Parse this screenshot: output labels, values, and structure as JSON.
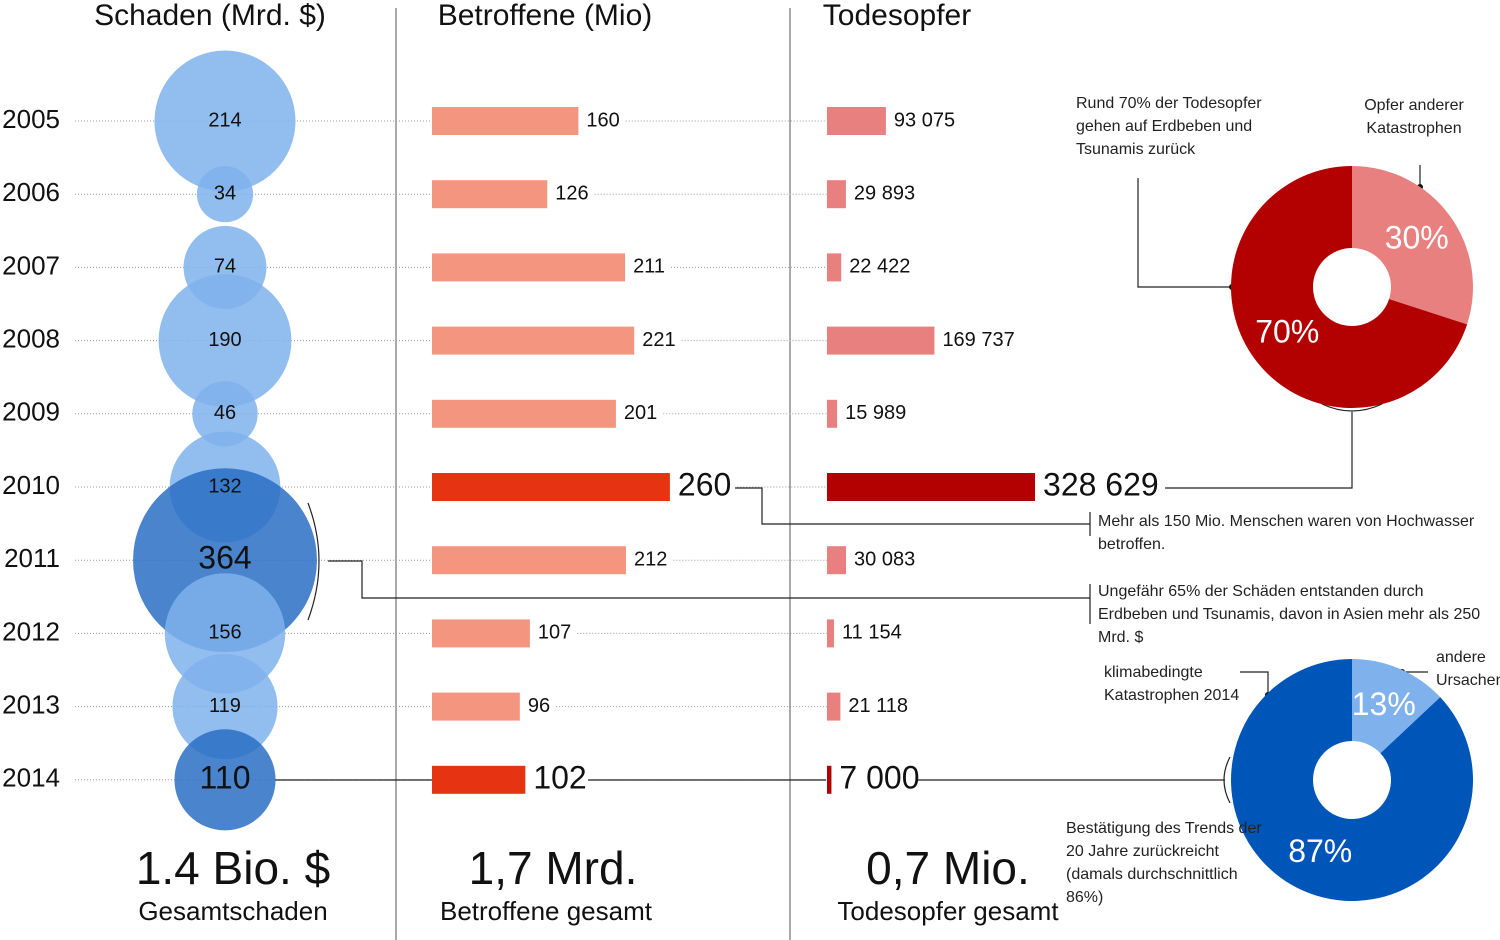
{
  "chart_data": [
    {
      "type": "bubble",
      "title": "Schaden (Mrd. $)",
      "categories": [
        "2005",
        "2006",
        "2007",
        "2008",
        "2009",
        "2010",
        "2011",
        "2012",
        "2013",
        "2014"
      ],
      "values": [
        214,
        34,
        74,
        190,
        46,
        132,
        364,
        156,
        119,
        110
      ],
      "colors": [
        "#7fb2ec",
        "#7fb2ec",
        "#7fb2ec",
        "#7fb2ec",
        "#7fb2ec",
        "#7fb2ec",
        "#2a6fc4",
        "#7fb2ec",
        "#7fb2ec",
        "#2a6fc4"
      ],
      "total": "1.4 Bio. $",
      "total_label": "Gesamtschaden",
      "total_color": "#1a5fb4",
      "annotation": "Ungefähr 65% der Schäden entstanden durch Erdbeben und Tsunamis, davon in Asien mehr als 250 Mrd. $"
    },
    {
      "type": "bar",
      "title": "Betroffene (Mio)",
      "values": [
        160,
        126,
        211,
        221,
        201,
        260,
        212,
        107,
        96,
        102
      ],
      "colors": [
        "#f4957f",
        "#f4957f",
        "#f4957f",
        "#f4957f",
        "#f4957f",
        "#e63312",
        "#f4957f",
        "#f4957f",
        "#f4957f",
        "#e63312"
      ],
      "total": "1,7 Mrd.",
      "total_label": "Betroffene gesamt",
      "total_color": "#e63312",
      "annotation": "Mehr als 150 Mio. Menschen waren von Hochwasser betroffen."
    },
    {
      "type": "bar",
      "title": "Todesopfer",
      "values": [
        93075,
        29893,
        22422,
        169737,
        15989,
        328629,
        30083,
        11154,
        21118,
        7000
      ],
      "value_labels": [
        "93 075",
        "29 893",
        "22 422",
        "169 737",
        "15 989",
        "328 629",
        "30 083",
        "11 154",
        "21 118",
        "7 000"
      ],
      "colors": [
        "#e88080",
        "#e88080",
        "#e88080",
        "#e88080",
        "#e88080",
        "#b30000",
        "#e88080",
        "#e88080",
        "#e88080",
        "#b30000"
      ],
      "total": "0,7 Mio.",
      "total_label": "Todesopfer gesamt",
      "total_color": "#b30000"
    },
    {
      "type": "pie",
      "categories": [
        "Opfer anderer Katastrophen",
        "Rund 70% der Todesopfer gehen auf Erdbeben und Tsunamis zurück"
      ],
      "values": [
        30,
        70
      ],
      "value_labels": [
        "30%",
        "70%"
      ],
      "colors": [
        "#e88080",
        "#b30000"
      ]
    },
    {
      "type": "pie",
      "categories": [
        "andere Ursachen",
        "klimabedingte Katastrophen 2014"
      ],
      "values": [
        13,
        87
      ],
      "value_labels": [
        "13%",
        "87%"
      ],
      "colors": [
        "#7fb2ec",
        "#0055b8"
      ],
      "annotation": "Bestätigung des Trends der 20 Jahre zurückreicht (damals durchschnittlich 86%)"
    }
  ]
}
